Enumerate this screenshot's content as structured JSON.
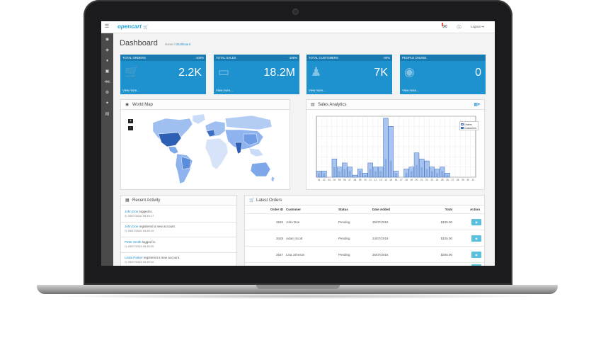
{
  "topbar": {
    "logo": "opencart",
    "alert_badge": "",
    "logout_label": "Logout"
  },
  "header": {
    "title": "Dashboard",
    "breadcrumb": [
      "Home",
      "Dashboard"
    ],
    "breadcrumb_sep": "/"
  },
  "sidebar": {
    "icons": [
      "dashboard-icon",
      "tag-icon",
      "puzzle-icon",
      "cart-icon",
      "share-icon",
      "gear-icon",
      "wrench-icon",
      "bar-chart-icon"
    ]
  },
  "tiles": [
    {
      "label": "TOTAL ORDERS",
      "pct": "-100%",
      "value": "2.2K",
      "more": "View more...",
      "icon": "cart-icon"
    },
    {
      "label": "TOTAL SALES",
      "pct": "-195%",
      "value": "18.2M",
      "more": "View more...",
      "icon": "credit-card-icon"
    },
    {
      "label": "TOTAL CUSTOMERS",
      "pct": "-30%",
      "value": "7K",
      "more": "View more...",
      "icon": "user-icon"
    },
    {
      "label": "PEOPLE ONLINE",
      "pct": "",
      "value": "0",
      "more": "View more...",
      "icon": "eye-icon"
    }
  ],
  "world_map": {
    "title": "World Map",
    "zoom_in": "+",
    "zoom_out": "-"
  },
  "sales_analytics": {
    "title": "Sales Analytics"
  },
  "chart_data": {
    "type": "bar",
    "title": "",
    "categories": [
      "01",
      "02",
      "03",
      "04",
      "05",
      "06",
      "07",
      "08",
      "09",
      "10",
      "11",
      "12",
      "13",
      "14",
      "15",
      "16",
      "17",
      "18",
      "19",
      "20",
      "21",
      "22",
      "23",
      "24",
      "25",
      "26",
      "27",
      "28",
      "29",
      "30",
      "31"
    ],
    "series": [
      {
        "name": "Orders",
        "values": [
          3,
          3,
          0,
          9,
          5,
          7,
          5,
          1,
          4,
          2,
          7,
          5,
          5,
          29,
          25,
          3,
          0,
          4,
          5,
          12,
          9,
          8,
          5,
          4,
          5,
          2,
          0,
          0,
          0,
          0,
          0
        ]
      },
      {
        "name": "Customers",
        "values": [
          2,
          2,
          0,
          5,
          3,
          4,
          3,
          0,
          3,
          1,
          4,
          3,
          3,
          9,
          8,
          2,
          0,
          2,
          3,
          6,
          5,
          4,
          3,
          2,
          3,
          1,
          0,
          0,
          0,
          0,
          0
        ]
      }
    ],
    "ylim": [
      0,
      30
    ],
    "yticks": [
      0,
      5,
      10,
      15,
      20,
      25,
      30
    ],
    "ytick_labels": [
      "",
      "",
      "",
      "",
      "",
      "",
      ""
    ],
    "legend": "top-right",
    "grid": true
  },
  "recent_activity": {
    "title": "Recent Activity",
    "items": [
      {
        "name": "John Doe",
        "action": "logged in.",
        "time": "25/07/2016 05:49:17"
      },
      {
        "name": "John Doe",
        "action": "registered a new account.",
        "time": "25/07/2016 04:49:10"
      },
      {
        "name": "Peter Smith",
        "action": "logged in.",
        "time": "25/07/2016 05:49:20"
      },
      {
        "name": "Linda Parker",
        "action": "registered a new account.",
        "time": "25/07/2016 04:49:10"
      }
    ]
  },
  "latest_orders": {
    "title": "Latest Orders",
    "columns": [
      "Order ID",
      "Customer",
      "Status",
      "Date Added",
      "Total",
      "Action"
    ],
    "rows": [
      {
        "id": "2626",
        "customer": "John Doe",
        "status": "Pending",
        "date": "25/07/2016",
        "total": "$105.00"
      },
      {
        "id": "2628",
        "customer": "Adam Scott",
        "status": "Pending",
        "date": "24/07/2016",
        "total": "$105.00"
      },
      {
        "id": "2627",
        "customer": "Lisa Johnson",
        "status": "Pending",
        "date": "25/07/2016",
        "total": "$205.00"
      }
    ]
  }
}
